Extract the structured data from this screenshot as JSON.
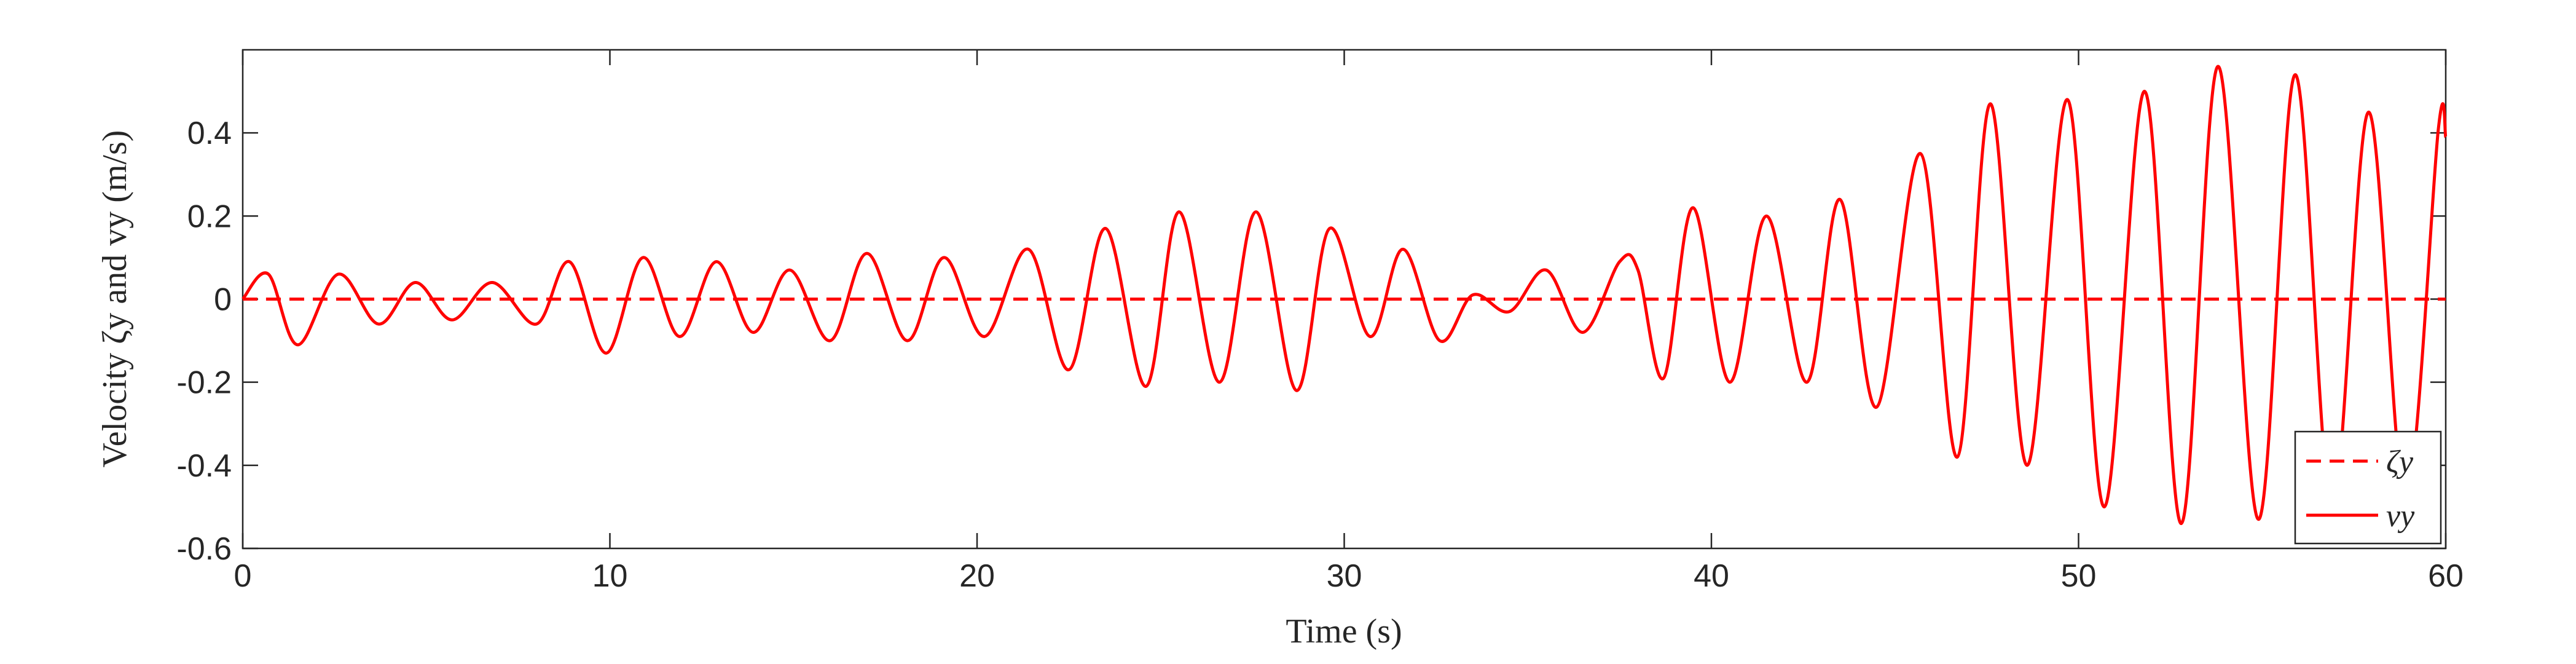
{
  "chart_data": {
    "type": "line",
    "xlabel": "Time (s)",
    "ylabel": "Velocity ζy and vy (m/s)",
    "xlim": [
      0,
      60
    ],
    "ylim": [
      -0.6,
      0.6
    ],
    "xticks": [
      0,
      10,
      20,
      30,
      40,
      50,
      60
    ],
    "yticks": [
      -0.6,
      -0.4,
      -0.2,
      0,
      0.2,
      0.4
    ],
    "grid": false,
    "legend_position": "lower right",
    "series": [
      {
        "name": "ζy",
        "color": "#ff0000",
        "dash": true,
        "x": [
          0,
          60
        ],
        "values": [
          0,
          0
        ]
      },
      {
        "name": "vy",
        "color": "#ff0000",
        "dash": false,
        "x": [
          0,
          0.7,
          1.5,
          2.6,
          3.7,
          4.7,
          5.7,
          6.8,
          8.0,
          8.9,
          9.9,
          10.9,
          11.9,
          12.9,
          13.9,
          14.9,
          16.0,
          17.0,
          18.1,
          19.1,
          20.2,
          21.4,
          22.5,
          23.5,
          24.6,
          25.5,
          26.6,
          27.6,
          28.7,
          29.6,
          30.7,
          31.6,
          32.6,
          33.5,
          34.5,
          35.5,
          36.5,
          37.5,
          38.0,
          38.7,
          39.5,
          40.5,
          41.5,
          42.6,
          43.5,
          44.5,
          45.7,
          46.7,
          47.6,
          48.6,
          49.7,
          50.7,
          51.8,
          52.8,
          53.8,
          54.9,
          55.9,
          56.9,
          57.9,
          58.9,
          59.8,
          60
        ],
        "values": [
          0,
          0.06,
          -0.11,
          0.06,
          -0.06,
          0.04,
          -0.05,
          0.04,
          -0.06,
          0.09,
          -0.13,
          0.1,
          -0.09,
          0.09,
          -0.08,
          0.07,
          -0.1,
          0.11,
          -0.1,
          0.1,
          -0.09,
          0.12,
          -0.17,
          0.17,
          -0.21,
          0.21,
          -0.2,
          0.21,
          -0.22,
          0.17,
          -0.09,
          0.12,
          -0.1,
          0.01,
          -0.03,
          0.07,
          -0.08,
          0.09,
          0.07,
          -0.19,
          0.22,
          -0.2,
          0.2,
          -0.2,
          0.24,
          -0.26,
          0.35,
          -0.38,
          0.47,
          -0.4,
          0.48,
          -0.5,
          0.5,
          -0.54,
          0.56,
          -0.53,
          0.54,
          -0.5,
          0.45,
          -0.48,
          0.41,
          0.39
        ]
      }
    ]
  }
}
